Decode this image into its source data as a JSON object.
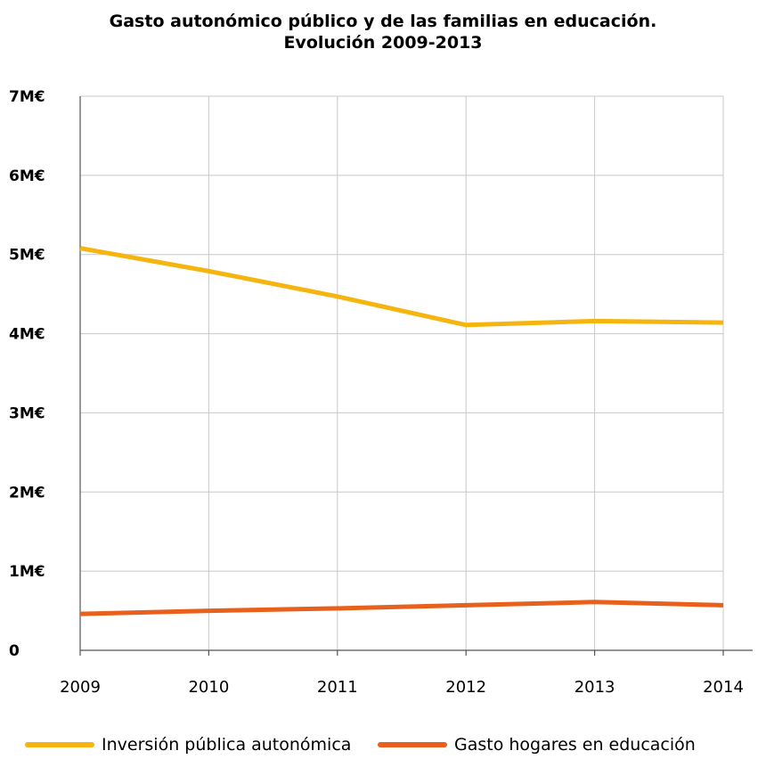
{
  "chart_data": {
    "type": "line",
    "title": "Gasto autonómico público y de las familias en educación.",
    "subtitle": "Evolución 2009-2013",
    "categories": [
      "2009",
      "2010",
      "2011",
      "2012",
      "2013",
      "2014"
    ],
    "yticks": [
      {
        "value": 0,
        "label": "0"
      },
      {
        "value": 1,
        "label": "1M€"
      },
      {
        "value": 2,
        "label": "2M€"
      },
      {
        "value": 3,
        "label": "3M€"
      },
      {
        "value": 4,
        "label": "4M€"
      },
      {
        "value": 5,
        "label": "5M€"
      },
      {
        "value": 6,
        "label": "6M€"
      },
      {
        "value": 7,
        "label": "7M€"
      }
    ],
    "ylim": [
      0,
      7
    ],
    "grid": true,
    "legend_position": "bottom",
    "series": [
      {
        "name": "Inversión pública autonómica",
        "color": "#F6B40E",
        "values": [
          5.08,
          4.79,
          4.47,
          4.11,
          4.16,
          4.14
        ]
      },
      {
        "name": "Gasto hogares en educación",
        "color": "#E8601C",
        "values": [
          0.46,
          0.5,
          0.53,
          0.57,
          0.61,
          0.57
        ]
      }
    ]
  }
}
